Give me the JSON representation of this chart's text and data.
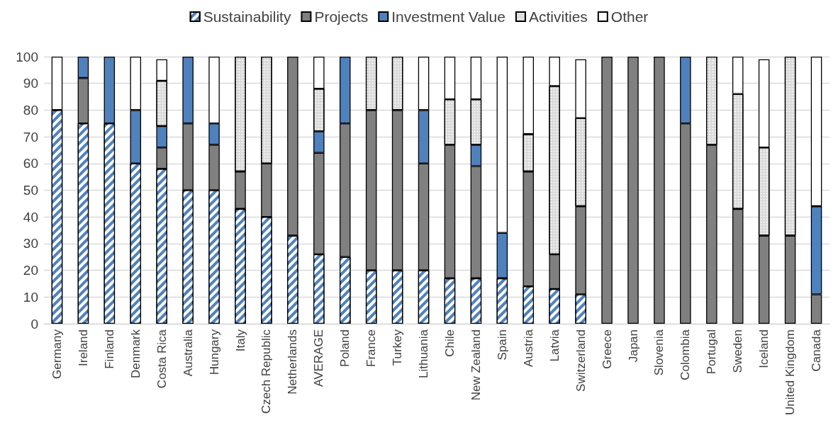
{
  "chart_data": {
    "type": "bar",
    "stacked": true,
    "categories": [
      "Germany",
      "Ireland",
      "Finland",
      "Denmark",
      "Costa Rica",
      "Australia",
      "Hungary",
      "Italy",
      "Czech Republic",
      "Netherlands",
      "AVERAGE",
      "Poland",
      "France",
      "Turkey",
      "Lithuania",
      "Chile",
      "New Zealand",
      "Spain",
      "Austria",
      "Latvia",
      "Switzerland",
      "Greece",
      "Japan",
      "Slovenia",
      "Colombia",
      "Portugal",
      "Sweden",
      "Iceland",
      "United Kingdom",
      "Canada"
    ],
    "series": [
      {
        "name": "Sustainability",
        "color": "#4f81bd",
        "values": [
          80,
          75,
          75,
          60,
          58,
          50,
          50,
          43,
          40,
          33,
          26,
          25,
          20,
          20,
          20,
          17,
          17,
          17,
          14,
          13,
          11,
          null,
          null,
          null,
          null,
          null,
          null,
          null,
          null,
          null
        ]
      },
      {
        "name": "Projects",
        "color": "#808080",
        "values": [
          null,
          17,
          null,
          null,
          8,
          25,
          17,
          14,
          20,
          67,
          38,
          50,
          60,
          60,
          40,
          50,
          42,
          null,
          43,
          13,
          33,
          100,
          100,
          100,
          75,
          67,
          43,
          33,
          33,
          11
        ]
      },
      {
        "name": "Investment Value",
        "color": "#4f81bd",
        "values": [
          null,
          8,
          25,
          20,
          8,
          25,
          8,
          null,
          null,
          null,
          8,
          25,
          null,
          null,
          20,
          null,
          8,
          17,
          null,
          null,
          null,
          null,
          null,
          null,
          25,
          null,
          null,
          null,
          null,
          33
        ]
      },
      {
        "name": "Activities",
        "color": "#d9d9d9",
        "values": [
          null,
          null,
          null,
          null,
          17,
          null,
          null,
          43,
          40,
          null,
          16,
          null,
          20,
          20,
          null,
          17,
          17,
          null,
          14,
          63,
          33,
          null,
          null,
          null,
          null,
          33,
          43,
          33,
          67,
          null
        ]
      },
      {
        "name": "Other",
        "color": "#ffffff",
        "values": [
          20,
          null,
          null,
          20,
          8,
          null,
          25,
          null,
          null,
          null,
          12,
          null,
          null,
          null,
          20,
          16,
          16,
          66,
          29,
          11,
          22,
          null,
          null,
          null,
          null,
          null,
          14,
          33,
          null,
          56
        ]
      }
    ],
    "ylim": [
      0,
      100
    ],
    "yticks": [
      0,
      10,
      20,
      30,
      40,
      50,
      60,
      70,
      80,
      90,
      100
    ],
    "grid": "y",
    "legend": "top"
  }
}
